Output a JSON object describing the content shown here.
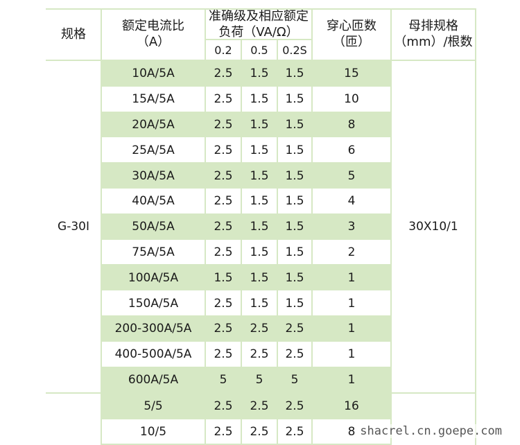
{
  "header": {
    "col_spec": "规格",
    "col_ratio_line1": "额定电流比",
    "col_ratio_line2": "（A）",
    "col_accuracy_line1": "准确级及相应额定",
    "col_accuracy_line2": "负荷（VA/Ω）",
    "acc_sub": [
      "0.2",
      "0.5",
      "0.2S"
    ],
    "col_turns_line1": "穿心匝数",
    "col_turns_line2": "（匝）",
    "col_busbar_line1": "母排规格",
    "col_busbar_line2": "（mm）/根数"
  },
  "group1": {
    "spec": "G-30I",
    "busbar": "30X10/1",
    "rows": [
      {
        "ratio": "10A/5A",
        "a02": "2.5",
        "a05": "1.5",
        "a02s": "1.5",
        "turns": "15"
      },
      {
        "ratio": "15A/5A",
        "a02": "2.5",
        "a05": "1.5",
        "a02s": "1.5",
        "turns": "10"
      },
      {
        "ratio": "20A/5A",
        "a02": "2.5",
        "a05": "1.5",
        "a02s": "1.5",
        "turns": "8"
      },
      {
        "ratio": "25A/5A",
        "a02": "2.5",
        "a05": "1.5",
        "a02s": "1.5",
        "turns": "6"
      },
      {
        "ratio": "30A/5A",
        "a02": "2.5",
        "a05": "1.5",
        "a02s": "1.5",
        "turns": "5"
      },
      {
        "ratio": "40A/5A",
        "a02": "2.5",
        "a05": "1.5",
        "a02s": "1.5",
        "turns": "4"
      },
      {
        "ratio": "50A/5A",
        "a02": "2.5",
        "a05": "1.5",
        "a02s": "1.5",
        "turns": "3"
      },
      {
        "ratio": "75A/5A",
        "a02": "2.5",
        "a05": "1.5",
        "a02s": "1.5",
        "turns": "2"
      },
      {
        "ratio": "100A/5A",
        "a02": "1.5",
        "a05": "1.5",
        "a02s": "1.5",
        "turns": "1"
      },
      {
        "ratio": "150A/5A",
        "a02": "2.5",
        "a05": "1.5",
        "a02s": "1.5",
        "turns": "1"
      },
      {
        "ratio": "200-300A/5A",
        "a02": "2.5",
        "a05": "2.5",
        "a02s": "2.5",
        "turns": "1"
      },
      {
        "ratio": "400-500A/5A",
        "a02": "2.5",
        "a05": "2.5",
        "a02s": "2.5",
        "turns": "1"
      },
      {
        "ratio": "600A/5A",
        "a02": "5",
        "a05": "5",
        "a02s": "5",
        "turns": "1"
      }
    ]
  },
  "group2": {
    "rows": [
      {
        "ratio": "5/5",
        "a02": "2.5",
        "a05": "2.5",
        "a02s": "2.5",
        "turns": "16"
      },
      {
        "ratio": "10/5",
        "a02": "2.5",
        "a05": "2.5",
        "a02s": "2.5",
        "turns": "8"
      }
    ]
  },
  "watermark": "shacrel.cn.goepe.com",
  "colors": {
    "row_green": "#d6e8c4",
    "rule": "#d6e8c4"
  }
}
